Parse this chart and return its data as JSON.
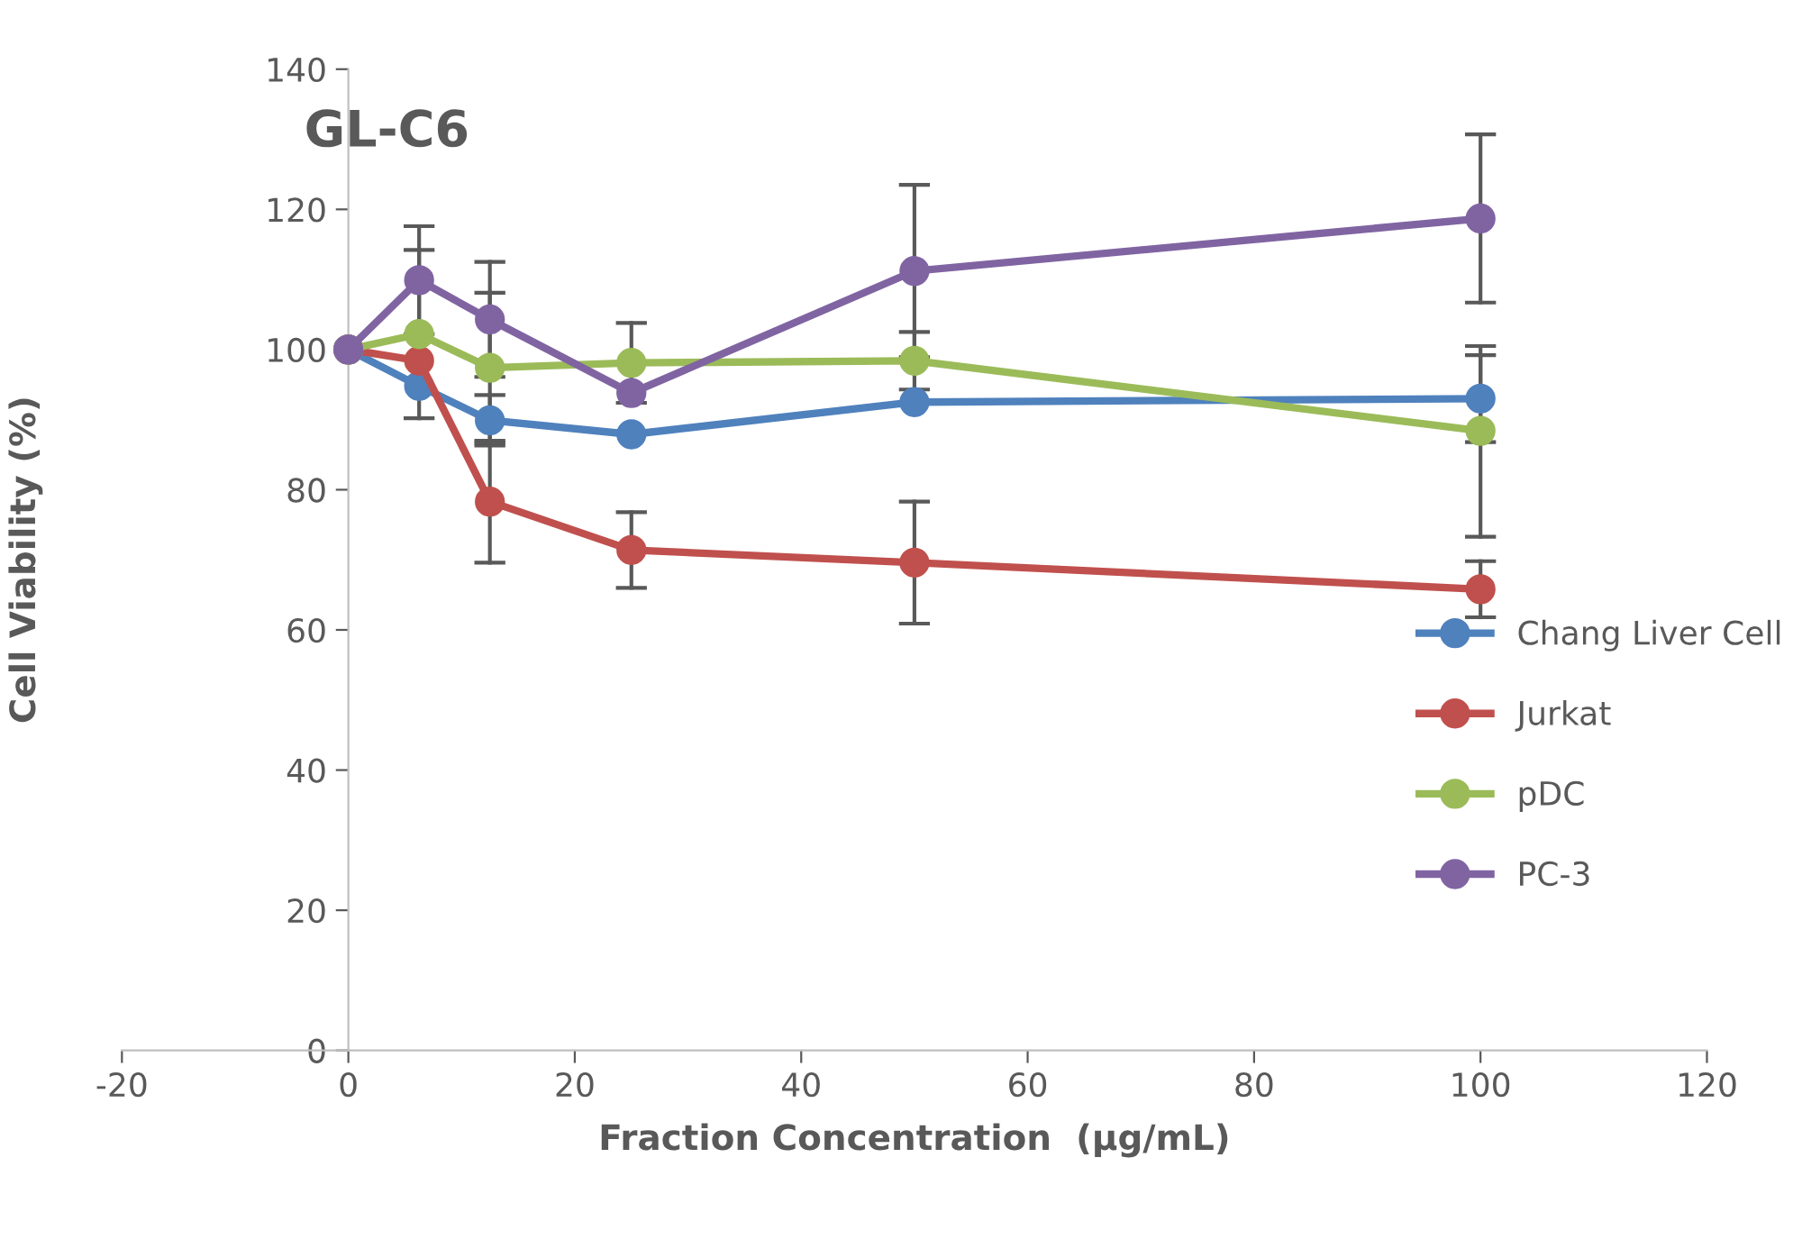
{
  "chart_data": {
    "type": "line",
    "title": "GL-C6",
    "xlabel": "Fraction Concentration  (µg/mL)",
    "ylabel": "Cell Viability (%)",
    "x": [
      0,
      6.25,
      12.5,
      25,
      50,
      100
    ],
    "series": [
      {
        "name": "Chang Liver Cell",
        "color": "#4f81bd",
        "values": [
          100,
          94.8,
          89.9,
          87.9,
          92.5,
          93.0
        ],
        "errors": [
          null,
          null,
          3.6,
          null,
          null,
          6.2
        ]
      },
      {
        "name": "Jurkat",
        "color": "#c0504d",
        "values": [
          100,
          98.4,
          78.3,
          71.4,
          69.6,
          65.8
        ],
        "errors": [
          null,
          null,
          8.7,
          5.4,
          8.7,
          4.0
        ]
      },
      {
        "name": "pDC",
        "color": "#9bbb59",
        "values": [
          100,
          102.2,
          97.4,
          98.1,
          98.4,
          88.4
        ],
        "errors": [
          null,
          12.0,
          10.7,
          5.7,
          4.1,
          [
            73.3,
            100.5
          ]
        ]
      },
      {
        "name": "PC-3",
        "color": "#8064a2",
        "values": [
          100,
          109.9,
          104.3,
          93.8,
          111.2,
          118.7
        ],
        "errors": [
          null,
          7.7,
          8.2,
          null,
          12.3,
          12.0
        ]
      }
    ],
    "xlim": [
      -20,
      120
    ],
    "xticks": [
      -20,
      0,
      20,
      40,
      60,
      80,
      100,
      120
    ],
    "ylim": [
      0,
      140
    ],
    "yticks": [
      0,
      20,
      40,
      60,
      80,
      100,
      120,
      140
    ],
    "grid": false,
    "legend": "right",
    "marker": "circle",
    "line_style": "solid"
  }
}
